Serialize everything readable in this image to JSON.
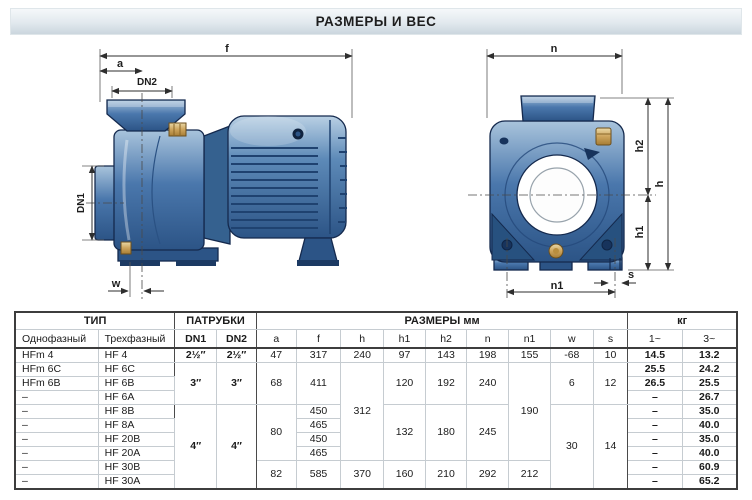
{
  "title": "РАЗМЕРЫ И ВЕС",
  "drawings": {
    "side": {
      "f": "f",
      "a": "a",
      "dn2": "DN2",
      "dn1": "DN1",
      "w": "w"
    },
    "front": {
      "n": "n",
      "h2": "h2",
      "h": "h",
      "h1": "h1",
      "n1": "n1",
      "s": "s"
    }
  },
  "table": {
    "group_headers": [
      {
        "label": "ТИП",
        "span": 2
      },
      {
        "label": "ПАТРУБКИ",
        "span": 2
      },
      {
        "label": "РАЗМЕРЫ  мм",
        "span": 9
      },
      {
        "label": "кг",
        "span": 2
      }
    ],
    "column_headers": [
      "Однофазный",
      "Трехфазный",
      "DN1",
      "DN2",
      "a",
      "f",
      "h",
      "h1",
      "h2",
      "n",
      "n1",
      "w",
      "s",
      "1~",
      "3~"
    ],
    "col_widths_pct": [
      11.5,
      10.6,
      5.8,
      5.5,
      5.5,
      6.2,
      5.9,
      5.8,
      5.7,
      5.8,
      5.8,
      5.9,
      4.8,
      7.5,
      7.6
    ],
    "rows": [
      [
        {
          "v": "HFm 4"
        },
        {
          "v": "HF 4"
        },
        {
          "v": "2½″",
          "b": 1
        },
        {
          "v": "2½″",
          "b": 1
        },
        {
          "v": "47"
        },
        {
          "v": "317"
        },
        {
          "v": "240"
        },
        {
          "v": "97"
        },
        {
          "v": "143"
        },
        {
          "v": "198"
        },
        {
          "v": "155"
        },
        {
          "v": "-68"
        },
        {
          "v": "10"
        },
        {
          "v": "14.5"
        },
        {
          "v": "13.2"
        }
      ],
      [
        {
          "v": "HFm 6C"
        },
        {
          "v": "HF 6C"
        },
        {
          "v": "3″",
          "b": 1,
          "rs": 3
        },
        {
          "v": "3″",
          "b": 1,
          "rs": 3
        },
        {
          "v": "68",
          "rs": 3
        },
        {
          "v": "411",
          "rs": 3
        },
        {
          "v": "312",
          "rs": 7
        },
        {
          "v": "120",
          "rs": 3
        },
        {
          "v": "192",
          "rs": 3
        },
        {
          "v": "240",
          "rs": 3
        },
        {
          "v": "190",
          "rs": 7
        },
        {
          "v": "6",
          "rs": 3
        },
        {
          "v": "12",
          "rs": 3
        },
        {
          "v": "25.5"
        },
        {
          "v": "24.2"
        }
      ],
      [
        {
          "v": "HFm 6B"
        },
        {
          "v": "HF 6B"
        },
        {
          "v": "26.5"
        },
        {
          "v": "25.5"
        }
      ],
      [
        {
          "v": "–"
        },
        {
          "v": "HF 6A"
        },
        {
          "v": "–"
        },
        {
          "v": "26.7"
        }
      ],
      [
        {
          "v": "–"
        },
        {
          "v": "HF 8B"
        },
        {
          "v": "4″",
          "b": 1,
          "rs": 6
        },
        {
          "v": "4″",
          "b": 1,
          "rs": 6
        },
        {
          "v": "80",
          "rs": 4
        },
        {
          "v": "450"
        },
        {
          "v": "132",
          "rs": 4
        },
        {
          "v": "180",
          "rs": 4
        },
        {
          "v": "245",
          "rs": 4
        },
        {
          "v": "30",
          "rs": 6
        },
        {
          "v": "14",
          "rs": 6
        },
        {
          "v": "–"
        },
        {
          "v": "35.0"
        }
      ],
      [
        {
          "v": "–"
        },
        {
          "v": "HF 8A"
        },
        {
          "v": "465"
        },
        {
          "v": "–"
        },
        {
          "v": "40.0"
        }
      ],
      [
        {
          "v": "–"
        },
        {
          "v": "HF 20B"
        },
        {
          "v": "450"
        },
        {
          "v": "–"
        },
        {
          "v": "35.0"
        }
      ],
      [
        {
          "v": "–"
        },
        {
          "v": "HF 20A"
        },
        {
          "v": "465"
        },
        {
          "v": "–"
        },
        {
          "v": "40.0"
        }
      ],
      [
        {
          "v": "–"
        },
        {
          "v": "HF 30B"
        },
        {
          "v": "82",
          "rs": 2
        },
        {
          "v": "585",
          "rs": 2
        },
        {
          "v": "370",
          "rs": 2
        },
        {
          "v": "160",
          "rs": 2
        },
        {
          "v": "210",
          "rs": 2
        },
        {
          "v": "292",
          "rs": 2
        },
        {
          "v": "212",
          "rs": 2
        },
        {
          "v": "–"
        },
        {
          "v": "60.9"
        }
      ],
      [
        {
          "v": "–"
        },
        {
          "v": "HF 30A"
        },
        {
          "v": "–"
        },
        {
          "v": "65.2"
        }
      ]
    ]
  },
  "colors": {
    "pump_blue": "#3e6ea7",
    "pump_dark": "#14294d",
    "brass": "#cda45c",
    "dim_line": "#2e2e2e"
  }
}
